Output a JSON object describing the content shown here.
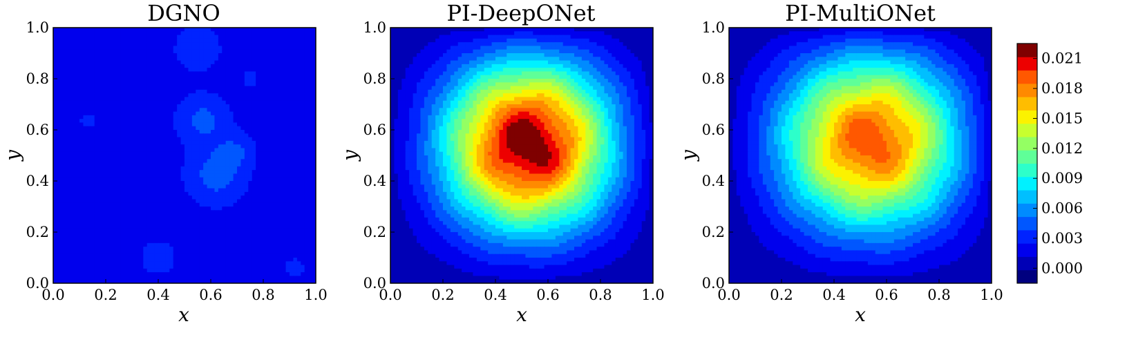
{
  "chart_data": [
    {
      "type": "heatmap",
      "title": "DGNO",
      "xlabel": "x",
      "ylabel": "y",
      "xlim": [
        0.0,
        1.0
      ],
      "ylim": [
        0.0,
        1.0
      ],
      "x_ticks": [
        "0.0",
        "0.2",
        "0.4",
        "0.6",
        "0.8",
        "1.0"
      ],
      "y_ticks": [
        "0.0",
        "0.2",
        "0.4",
        "0.6",
        "0.8",
        "1.0"
      ],
      "field": {
        "kind": "blobs",
        "base": 0.0018,
        "blobs": [
          {
            "x": 0.55,
            "y": 0.92,
            "amp": 0.002,
            "sigma": 0.06
          },
          {
            "x": 0.57,
            "y": 0.64,
            "amp": 0.0024,
            "sigma": 0.07
          },
          {
            "x": 0.62,
            "y": 0.42,
            "amp": 0.0026,
            "sigma": 0.08
          },
          {
            "x": 0.7,
            "y": 0.52,
            "amp": 0.0016,
            "sigma": 0.05
          },
          {
            "x": 0.4,
            "y": 0.1,
            "amp": 0.0016,
            "sigma": 0.05
          },
          {
            "x": 0.92,
            "y": 0.06,
            "amp": 0.001,
            "sigma": 0.04
          },
          {
            "x": 0.13,
            "y": 0.63,
            "amp": 0.0008,
            "sigma": 0.04
          },
          {
            "x": 0.3,
            "y": 0.55,
            "amp": 0.0006,
            "sigma": 0.05
          },
          {
            "x": 0.2,
            "y": 0.75,
            "amp": 0.0006,
            "sigma": 0.06
          },
          {
            "x": 0.75,
            "y": 0.8,
            "amp": 0.0008,
            "sigma": 0.05
          }
        ]
      }
    },
    {
      "type": "heatmap",
      "title": "PI-DeepONet",
      "xlabel": "x",
      "ylabel": "y",
      "xlim": [
        0.0,
        1.0
      ],
      "ylim": [
        0.0,
        1.0
      ],
      "x_ticks": [
        "0.0",
        "0.2",
        "0.4",
        "0.6",
        "0.8",
        "1.0"
      ],
      "y_ticks": [
        "0.0",
        "0.2",
        "0.4",
        "0.6",
        "0.8",
        "1.0"
      ],
      "field": {
        "kind": "peak",
        "peak_x": 0.53,
        "peak_y": 0.55,
        "peak_value": 0.0225,
        "sigma_x": 0.26,
        "sigma_y": 0.27
      }
    },
    {
      "type": "heatmap",
      "title": "PI-MultiONet",
      "xlabel": "x",
      "ylabel": "y",
      "xlim": [
        0.0,
        1.0
      ],
      "ylim": [
        0.0,
        1.0
      ],
      "x_ticks": [
        "0.0",
        "0.2",
        "0.4",
        "0.6",
        "0.8",
        "1.0"
      ],
      "y_ticks": [
        "0.0",
        "0.2",
        "0.4",
        "0.6",
        "0.8",
        "1.0"
      ],
      "field": {
        "kind": "peak",
        "peak_x": 0.55,
        "peak_y": 0.57,
        "peak_value": 0.0195,
        "sigma_x": 0.28,
        "sigma_y": 0.28
      }
    }
  ],
  "colorbar": {
    "ticks": [
      "0.000",
      "0.003",
      "0.006",
      "0.009",
      "0.012",
      "0.015",
      "0.018",
      "0.021"
    ],
    "range": [
      -0.0015,
      0.0225
    ],
    "levels": 16,
    "colors": [
      "#00007f",
      "#0000b6",
      "#0000ed",
      "#0023ff",
      "#0057ff",
      "#008bff",
      "#00bfff",
      "#00f1ff",
      "#2dffca",
      "#5fff98",
      "#94ff63",
      "#c8ff2f",
      "#fbf200",
      "#ffbd00",
      "#ff8a00",
      "#ff5800",
      "#ed0000",
      "#7f0000"
    ]
  }
}
